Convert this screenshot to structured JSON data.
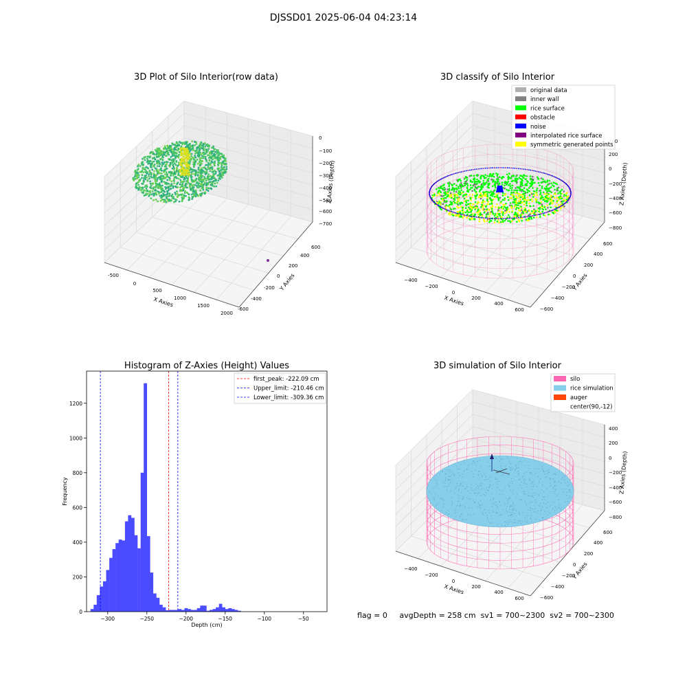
{
  "suptitle": "DJSSD01 2025-06-04 04:23:14",
  "status_line": {
    "flag": "flag = 0",
    "avg_depth": "avgDepth = 258 cm",
    "sv1": "sv1 = 700~2300",
    "sv2": "sv2 = 700~2300"
  },
  "colors": {
    "hist_bar": "#4b4bff",
    "first_peak": "#ff0000",
    "limits": "#0000ff",
    "silo": "#ff69b4",
    "rice_sim": "#87ceeb",
    "auger": "#ff4500",
    "rice_surface": "#00ff00",
    "noise": "#0000ff",
    "symmetric": "#ffff00",
    "interpolated": "#800080"
  },
  "chart_data": [
    {
      "type": "scatter",
      "title": "3D Plot of Silo Interior(row data)",
      "xlabel": "X Axies",
      "ylabel": "Y Axies",
      "zlabel": "Z Axies (Depth)",
      "x_ticks": [
        "-500",
        "0",
        "500",
        "1000",
        "1500",
        "2000"
      ],
      "y_ticks": [
        "-600",
        "-400",
        "-200",
        "0",
        "200",
        "400",
        "600"
      ],
      "z_ticks": [
        "0",
        "−100",
        "−200",
        "−300",
        "−400",
        "−500",
        "−600",
        "−700"
      ]
    },
    {
      "type": "scatter",
      "title": "3D classify of Silo Interior",
      "xlabel": "X Axies",
      "ylabel": "Y Axies",
      "zlabel": "Z Axies (Depth)",
      "x_ticks": [
        "−400",
        "−200",
        "0",
        "200",
        "400",
        "600"
      ],
      "y_ticks": [
        "−600",
        "−400",
        "−200",
        "0",
        "200",
        "400",
        "600"
      ],
      "z_ticks": [
        "−800",
        "−600",
        "−400",
        "−200",
        "0",
        "200",
        "400"
      ],
      "legend": [
        {
          "label": "original data",
          "color": "#b0b0b0"
        },
        {
          "label": "inner wall",
          "color": "#808080"
        },
        {
          "label": "rice surface",
          "color": "#00ff00"
        },
        {
          "label": "obstacle",
          "color": "#ff0000"
        },
        {
          "label": "noise",
          "color": "#0000ff"
        },
        {
          "label": "interpolated rice surface",
          "color": "#800080"
        },
        {
          "label": "symmetric generated points",
          "color": "#ffff00"
        }
      ]
    },
    {
      "type": "bar",
      "title": "Histogram of Z-Axies (Height) Values",
      "xlabel": "Depth (cm)",
      "ylabel": "Frequency",
      "xlim": [
        -327,
        -20
      ],
      "ylim": [
        0,
        1385
      ],
      "x_ticks": [
        -300,
        -250,
        -200,
        -150,
        -100,
        -50
      ],
      "y_ticks": [
        0,
        200,
        400,
        600,
        800,
        1000,
        1200
      ],
      "bin_width": 4.2,
      "bins": [
        [
          -322,
          15
        ],
        [
          -318,
          40
        ],
        [
          -314,
          95
        ],
        [
          -310,
          145
        ],
        [
          -306,
          175
        ],
        [
          -302,
          240
        ],
        [
          -298,
          310
        ],
        [
          -294,
          360
        ],
        [
          -290,
          395
        ],
        [
          -286,
          415
        ],
        [
          -282,
          410
        ],
        [
          -278,
          520
        ],
        [
          -274,
          555
        ],
        [
          -270,
          540
        ],
        [
          -266,
          440
        ],
        [
          -262,
          365
        ],
        [
          -258,
          800
        ],
        [
          -254,
          1315
        ],
        [
          -250,
          435
        ],
        [
          -246,
          225
        ],
        [
          -242,
          105
        ],
        [
          -238,
          80
        ],
        [
          -234,
          40
        ],
        [
          -230,
          25
        ],
        [
          -226,
          8
        ],
        [
          -222,
          10
        ],
        [
          -218,
          10
        ],
        [
          -214,
          10
        ],
        [
          -210,
          15
        ],
        [
          -206,
          10
        ],
        [
          -202,
          20
        ],
        [
          -198,
          15
        ],
        [
          -194,
          10
        ],
        [
          -190,
          10
        ],
        [
          -186,
          20
        ],
        [
          -182,
          35
        ],
        [
          -178,
          35
        ],
        [
          -174,
          5
        ],
        [
          -170,
          10
        ],
        [
          -166,
          15
        ],
        [
          -162,
          25
        ],
        [
          -158,
          45
        ],
        [
          -154,
          25
        ],
        [
          -150,
          15
        ],
        [
          -146,
          20
        ],
        [
          -142,
          15
        ],
        [
          -138,
          10
        ],
        [
          -134,
          5
        ]
      ],
      "vlines": [
        {
          "label": "first_peak: -222.09 cm",
          "x": -222.09,
          "color": "#ff0000"
        },
        {
          "label": "Upper_limit: -210.46 cm",
          "x": -210.46,
          "color": "#0000ff"
        },
        {
          "label": "Lower_limit: -309.36 cm",
          "x": -309.36,
          "color": "#0000ff"
        }
      ]
    },
    {
      "type": "area",
      "title": "3D simulation of Silo Interior",
      "xlabel": "X Axies",
      "ylabel": "Y Axies",
      "zlabel": "Z Axies (Depth)",
      "x_ticks": [
        "−400",
        "−200",
        "0",
        "200",
        "400",
        "600"
      ],
      "y_ticks": [
        "−600",
        "−400",
        "−200",
        "0",
        "200",
        "400",
        "600"
      ],
      "z_ticks": [
        "−800",
        "−600",
        "−400",
        "−200",
        "0",
        "200",
        "400"
      ],
      "legend": [
        {
          "label": "silo",
          "color": "#ff69b4"
        },
        {
          "label": "rice simulation",
          "color": "#87ceeb"
        },
        {
          "label": "auger",
          "color": "#ff4500"
        },
        {
          "label": "center(90,-12)",
          "color": ""
        }
      ]
    }
  ]
}
